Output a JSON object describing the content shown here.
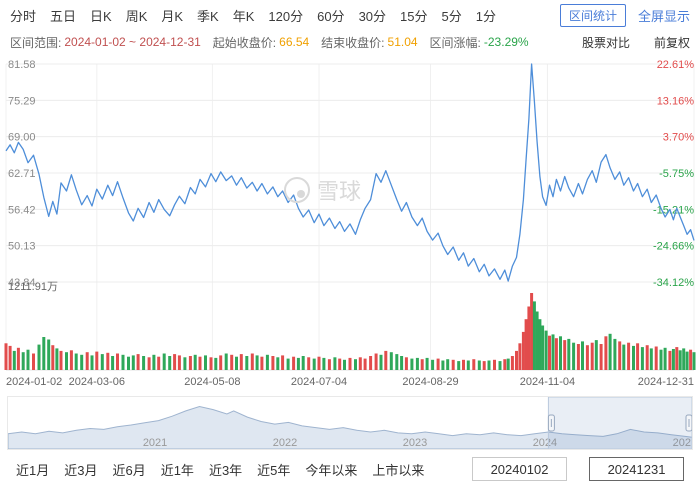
{
  "toolbar": {
    "periods": [
      "分时",
      "五日",
      "日K",
      "周K",
      "月K",
      "季K",
      "年K",
      "120分",
      "60分",
      "30分",
      "15分",
      "5分",
      "1分"
    ],
    "interval_stats": "区间统计",
    "fullscreen": "全屏显示"
  },
  "stats": {
    "range_label": "区间范围:",
    "range_value": "2024-01-02 ~ 2024-12-31",
    "start_label": "起始收盘价:",
    "start_value": "66.54",
    "end_label": "结束收盘价:",
    "end_value": "51.04",
    "change_label": "区间涨幅:",
    "change_value": "-23.29%",
    "compare": "股票对比",
    "adjust": "前复权"
  },
  "watermark": "雪球",
  "chart_data": {
    "type": "line",
    "title": "",
    "xlabel": "",
    "ylabel": "",
    "y_min": 43.84,
    "y_max": 81.58,
    "start_close": 66.54,
    "end_close": 51.04,
    "change_pct": "-23.29%",
    "ylabel_left_ticks": [
      "81.58",
      "75.29",
      "69.00",
      "62.71",
      "56.42",
      "50.13",
      "43.84"
    ],
    "ylabel_right_ticks": [
      "22.61%",
      "13.16%",
      "3.70%",
      "-5.75%",
      "-15.21%",
      "-24.66%",
      "-34.12%"
    ],
    "volume_max_label": "1211.91万",
    "volume_max": 1211.91,
    "x_ticks": [
      {
        "f": 0.0,
        "label": "2024-01-02"
      },
      {
        "f": 0.132,
        "label": "2024-03-06"
      },
      {
        "f": 0.3,
        "label": "2024-05-08"
      },
      {
        "f": 0.455,
        "label": "2024-07-04"
      },
      {
        "f": 0.617,
        "label": "2024-08-29"
      },
      {
        "f": 0.787,
        "label": "2024-11-04"
      },
      {
        "f": 1.0,
        "label": "2024-12-31"
      }
    ],
    "price": [
      [
        0,
        66.54
      ],
      [
        0.006,
        67.6
      ],
      [
        0.012,
        66.2
      ],
      [
        0.018,
        68
      ],
      [
        0.025,
        66.8
      ],
      [
        0.032,
        64.5
      ],
      [
        0.04,
        65.8
      ],
      [
        0.048,
        62.5
      ],
      [
        0.055,
        58.5
      ],
      [
        0.062,
        55.2
      ],
      [
        0.068,
        57.8
      ],
      [
        0.074,
        55.6
      ],
      [
        0.08,
        61
      ],
      [
        0.088,
        59.6
      ],
      [
        0.095,
        62.4
      ],
      [
        0.102,
        59.8
      ],
      [
        0.11,
        57.2
      ],
      [
        0.118,
        58.8
      ],
      [
        0.125,
        57
      ],
      [
        0.132,
        59.9
      ],
      [
        0.14,
        58.2
      ],
      [
        0.148,
        60.6
      ],
      [
        0.155,
        58.8
      ],
      [
        0.162,
        61.2
      ],
      [
        0.17,
        58.4
      ],
      [
        0.178,
        55.8
      ],
      [
        0.185,
        54.4
      ],
      [
        0.192,
        56.6
      ],
      [
        0.2,
        55
      ],
      [
        0.208,
        57.6
      ],
      [
        0.215,
        55.9
      ],
      [
        0.222,
        58.1
      ],
      [
        0.23,
        56.4
      ],
      [
        0.238,
        55.3
      ],
      [
        0.245,
        57.2
      ],
      [
        0.252,
        58.7
      ],
      [
        0.26,
        57.4
      ],
      [
        0.268,
        60.2
      ],
      [
        0.275,
        59.1
      ],
      [
        0.282,
        61.6
      ],
      [
        0.29,
        60.3
      ],
      [
        0.298,
        62.6
      ],
      [
        0.305,
        61.2
      ],
      [
        0.312,
        62.9
      ],
      [
        0.32,
        61.4
      ],
      [
        0.328,
        62.2
      ],
      [
        0.335,
        60.6
      ],
      [
        0.342,
        61.9
      ],
      [
        0.35,
        60.1
      ],
      [
        0.358,
        61.1
      ],
      [
        0.365,
        59.6
      ],
      [
        0.372,
        60.9
      ],
      [
        0.38,
        59.1
      ],
      [
        0.388,
        60.3
      ],
      [
        0.395,
        58.6
      ],
      [
        0.402,
        59.6
      ],
      [
        0.41,
        57.6
      ],
      [
        0.418,
        58.9
      ],
      [
        0.425,
        56.6
      ],
      [
        0.432,
        55.1
      ],
      [
        0.44,
        56.3
      ],
      [
        0.448,
        54.1
      ],
      [
        0.455,
        55.6
      ],
      [
        0.462,
        53.6
      ],
      [
        0.47,
        54.9
      ],
      [
        0.478,
        53.1
      ],
      [
        0.485,
        54.3
      ],
      [
        0.492,
        52.6
      ],
      [
        0.5,
        53.9
      ],
      [
        0.508,
        52.1
      ],
      [
        0.515,
        54.6
      ],
      [
        0.522,
        56.6
      ],
      [
        0.53,
        58.1
      ],
      [
        0.538,
        62.6
      ],
      [
        0.545,
        61.1
      ],
      [
        0.552,
        63.1
      ],
      [
        0.56,
        60.6
      ],
      [
        0.568,
        58.1
      ],
      [
        0.575,
        56.1
      ],
      [
        0.582,
        57.6
      ],
      [
        0.59,
        55.1
      ],
      [
        0.598,
        53.6
      ],
      [
        0.605,
        54.9
      ],
      [
        0.612,
        52.6
      ],
      [
        0.62,
        51.1
      ],
      [
        0.628,
        52.3
      ],
      [
        0.635,
        50.1
      ],
      [
        0.642,
        48.6
      ],
      [
        0.65,
        49.9
      ],
      [
        0.658,
        47.6
      ],
      [
        0.665,
        48.9
      ],
      [
        0.672,
        46.6
      ],
      [
        0.68,
        47.9
      ],
      [
        0.688,
        45.6
      ],
      [
        0.695,
        46.9
      ],
      [
        0.702,
        44.9
      ],
      [
        0.71,
        46.1
      ],
      [
        0.718,
        44.3
      ],
      [
        0.725,
        45.9
      ],
      [
        0.73,
        44
      ],
      [
        0.736,
        46.6
      ],
      [
        0.742,
        48.1
      ],
      [
        0.747,
        52.1
      ],
      [
        0.752,
        58.1
      ],
      [
        0.756,
        65.1
      ],
      [
        0.76,
        72.1
      ],
      [
        0.764,
        81.58
      ],
      [
        0.768,
        75.1
      ],
      [
        0.772,
        68.1
      ],
      [
        0.776,
        62.1
      ],
      [
        0.78,
        58.6
      ],
      [
        0.785,
        57.1
      ],
      [
        0.79,
        60.6
      ],
      [
        0.795,
        58.6
      ],
      [
        0.8,
        61.6
      ],
      [
        0.806,
        59.6
      ],
      [
        0.812,
        62.1
      ],
      [
        0.818,
        60.1
      ],
      [
        0.825,
        58.6
      ],
      [
        0.832,
        60.9
      ],
      [
        0.838,
        59.1
      ],
      [
        0.845,
        61.6
      ],
      [
        0.852,
        63.1
      ],
      [
        0.858,
        61.1
      ],
      [
        0.865,
        64.6
      ],
      [
        0.872,
        65.9
      ],
      [
        0.878,
        63.6
      ],
      [
        0.885,
        61.6
      ],
      [
        0.892,
        62.9
      ],
      [
        0.898,
        60.6
      ],
      [
        0.905,
        61.9
      ],
      [
        0.912,
        59.6
      ],
      [
        0.918,
        60.9
      ],
      [
        0.925,
        58.6
      ],
      [
        0.932,
        59.9
      ],
      [
        0.938,
        57.6
      ],
      [
        0.945,
        58.9
      ],
      [
        0.952,
        56.6
      ],
      [
        0.958,
        55.1
      ],
      [
        0.965,
        56.4
      ],
      [
        0.97,
        54.6
      ],
      [
        0.975,
        56.6
      ],
      [
        0.98,
        55.1
      ],
      [
        0.985,
        53.6
      ],
      [
        0.99,
        52.1
      ],
      [
        0.995,
        52.9
      ],
      [
        1,
        51.04
      ]
    ],
    "volumes": [
      420,
      380,
      300,
      350,
      280,
      320,
      260,
      400,
      520,
      480,
      390,
      340,
      300,
      280,
      310,
      260,
      240,
      280,
      230,
      290,
      250,
      270,
      220,
      260,
      240,
      210,
      230,
      250,
      220,
      200,
      240,
      210,
      260,
      220,
      250,
      230,
      200,
      220,
      240,
      210,
      230,
      200,
      190,
      230,
      260,
      240,
      210,
      250,
      220,
      260,
      230,
      210,
      240,
      220,
      200,
      230,
      180,
      210,
      190,
      220,
      200,
      180,
      210,
      190,
      170,
      200,
      180,
      160,
      190,
      170,
      200,
      180,
      220,
      260,
      240,
      300,
      280,
      250,
      220,
      200,
      180,
      190,
      170,
      190,
      160,
      180,
      150,
      170,
      160,
      140,
      160,
      150,
      170,
      150,
      140,
      150,
      160,
      140,
      170,
      180,
      220,
      300,
      420,
      600,
      800,
      1000,
      1211.91,
      1080,
      920,
      800,
      700,
      620,
      540,
      560,
      500,
      530,
      470,
      490,
      430,
      410,
      450,
      390,
      430,
      470,
      410,
      530,
      570,
      490,
      450,
      400,
      430,
      380,
      420,
      360,
      390,
      340,
      370,
      320,
      350,
      300,
      330,
      360,
      310,
      340,
      290,
      320,
      280
    ],
    "colors": {
      "line": "#4e8ed9",
      "up": "#e24c4c",
      "down": "#2fa85a",
      "grid": "#ececec",
      "vgrid": "#f0f0f0",
      "pos": "#e24c4c",
      "neg": "#2aa44a"
    }
  },
  "navigator": {
    "years": [
      {
        "f": 0.215,
        "label": "2021"
      },
      {
        "f": 0.405,
        "label": "2022"
      },
      {
        "f": 0.595,
        "label": "2023"
      },
      {
        "f": 0.785,
        "label": "2024"
      },
      {
        "f": 0.985,
        "label": "202"
      }
    ],
    "area": [
      [
        0,
        0.3
      ],
      [
        0.02,
        0.34
      ],
      [
        0.04,
        0.3
      ],
      [
        0.06,
        0.36
      ],
      [
        0.08,
        0.32
      ],
      [
        0.1,
        0.38
      ],
      [
        0.12,
        0.42
      ],
      [
        0.14,
        0.4
      ],
      [
        0.16,
        0.46
      ],
      [
        0.18,
        0.5
      ],
      [
        0.2,
        0.55
      ],
      [
        0.22,
        0.6
      ],
      [
        0.24,
        0.7
      ],
      [
        0.26,
        0.82
      ],
      [
        0.28,
        0.92
      ],
      [
        0.3,
        0.85
      ],
      [
        0.32,
        0.75
      ],
      [
        0.33,
        0.82
      ],
      [
        0.35,
        0.68
      ],
      [
        0.37,
        0.58
      ],
      [
        0.39,
        0.52
      ],
      [
        0.41,
        0.56
      ],
      [
        0.43,
        0.48
      ],
      [
        0.45,
        0.44
      ],
      [
        0.47,
        0.4
      ],
      [
        0.49,
        0.44
      ],
      [
        0.51,
        0.38
      ],
      [
        0.53,
        0.34
      ],
      [
        0.55,
        0.38
      ],
      [
        0.57,
        0.32
      ],
      [
        0.59,
        0.3
      ],
      [
        0.61,
        0.34
      ],
      [
        0.63,
        0.3
      ],
      [
        0.65,
        0.26
      ],
      [
        0.67,
        0.3
      ],
      [
        0.69,
        0.28
      ],
      [
        0.71,
        0.32
      ],
      [
        0.73,
        0.28
      ],
      [
        0.75,
        0.26
      ],
      [
        0.77,
        0.3
      ],
      [
        0.79,
        0.34
      ],
      [
        0.81,
        0.3
      ],
      [
        0.83,
        0.28
      ],
      [
        0.85,
        0.26
      ],
      [
        0.87,
        0.24
      ],
      [
        0.89,
        0.3
      ],
      [
        0.91,
        0.4
      ],
      [
        0.93,
        0.34
      ],
      [
        0.95,
        0.32
      ],
      [
        0.97,
        0.28
      ],
      [
        0.99,
        0.24
      ],
      [
        1,
        0.22
      ]
    ],
    "selection": [
      0.79,
      1.0
    ]
  },
  "bottom": {
    "ranges": [
      "近1月",
      "近3月",
      "近6月",
      "近1年",
      "近3年",
      "近5年",
      "今年以来",
      "上市以来"
    ],
    "start_date": "20240102",
    "end_date": "20241231"
  }
}
